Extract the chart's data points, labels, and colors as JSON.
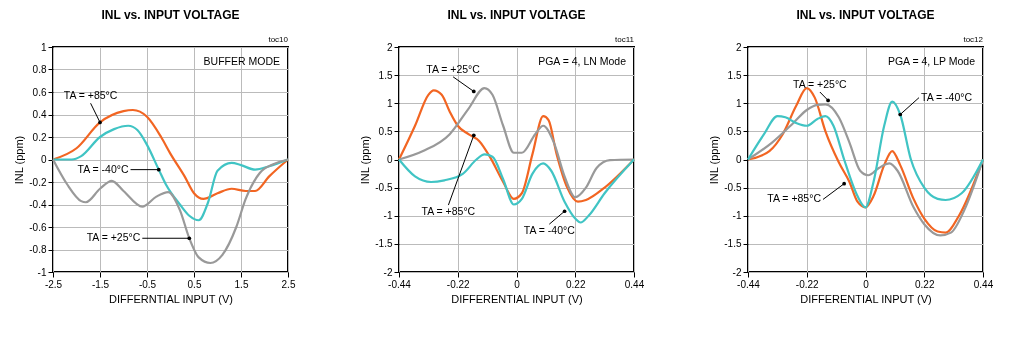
{
  "chart_data": [
    {
      "type": "line",
      "title": "INL vs. INPUT VOLTAGE",
      "xlabel": "DIFFERNTIAL INPUT (V)",
      "ylabel": "INL (ppm)",
      "xlim": [
        -2.5,
        2.5
      ],
      "xticks": [
        -2.5,
        -1.5,
        -0.5,
        0.5,
        1.5,
        2.5
      ],
      "ylim": [
        -1,
        1
      ],
      "yticks": [
        -1,
        -0.8,
        -0.6,
        -0.4,
        -0.2,
        0,
        0.2,
        0.4,
        0.6,
        0.8,
        1
      ],
      "grid": true,
      "line_style": "solid",
      "marker": "none",
      "series": [
        {
          "color": "#f26522",
          "x": [
            -2.5,
            -2.0,
            -1.5,
            -1.0,
            -0.8,
            -0.5,
            -0.2,
            0.0,
            0.3,
            0.5,
            0.7,
            1.0,
            1.3,
            1.6,
            1.8,
            2.1,
            2.5
          ],
          "values": [
            0,
            0.1,
            0.33,
            0.43,
            0.44,
            0.38,
            0.2,
            0.05,
            -0.15,
            -0.3,
            -0.35,
            -0.3,
            -0.26,
            -0.28,
            -0.28,
            -0.15,
            0
          ]
        },
        {
          "color": "#40c4c4",
          "x": [
            -2.5,
            -2.1,
            -1.9,
            -1.5,
            -1.2,
            -0.9,
            -0.7,
            -0.5,
            -0.25,
            -0.1,
            0.2,
            0.4,
            0.6,
            0.8,
            1.0,
            1.3,
            1.5,
            1.8,
            2.1,
            2.5
          ],
          "values": [
            0,
            0,
            0.03,
            0.2,
            0.27,
            0.3,
            0.26,
            0.13,
            -0.09,
            -0.22,
            -0.4,
            -0.5,
            -0.54,
            -0.38,
            -0.1,
            -0.03,
            -0.05,
            -0.09,
            -0.06,
            0
          ]
        },
        {
          "color": "#999999",
          "x": [
            -2.5,
            -2.2,
            -1.9,
            -1.8,
            -1.5,
            -1.25,
            -1.0,
            -0.6,
            -0.3,
            -0.05,
            0.2,
            0.4,
            0.6,
            0.85,
            1.1,
            1.4,
            1.6,
            1.9,
            2.2,
            2.5
          ],
          "values": [
            0,
            -0.22,
            -0.37,
            -0.38,
            -0.26,
            -0.19,
            -0.28,
            -0.42,
            -0.33,
            -0.29,
            -0.45,
            -0.7,
            -0.87,
            -0.92,
            -0.85,
            -0.6,
            -0.35,
            -0.12,
            -0.04,
            0
          ]
        }
      ],
      "annotations": [
        "toc10",
        "BUFFER MODE",
        {
          "text": "TA = +85°C",
          "x": -1.5,
          "y": 0.33
        },
        {
          "text": "TA = -40°C",
          "x": -0.25,
          "y": -0.09
        },
        {
          "text": "TA = +25°C",
          "x": 0.4,
          "y": -0.7
        }
      ]
    },
    {
      "type": "line",
      "title": "INL vs. INPUT VOLTAGE",
      "xlabel": "DIFFERENTIAL INPUT (V)",
      "ylabel": "INL (ppm)",
      "xlim": [
        -0.44,
        0.44
      ],
      "xticks": [
        -0.44,
        -0.22,
        0,
        0.22,
        0.44
      ],
      "ylim": [
        -2,
        2
      ],
      "yticks": [
        -2,
        -1.5,
        -1,
        -0.5,
        0,
        0.5,
        1,
        1.5,
        2
      ],
      "grid": true,
      "line_style": "solid",
      "marker": "none",
      "series": [
        {
          "color": "#f26522",
          "x": [
            -0.44,
            -0.38,
            -0.33,
            -0.31,
            -0.28,
            -0.25,
            -0.22,
            -0.18,
            -0.14,
            -0.1,
            -0.05,
            -0.01,
            0.02,
            0.06,
            0.1,
            0.12,
            0.15,
            0.19,
            0.23,
            0.26,
            0.33,
            0.44
          ],
          "values": [
            0,
            0.6,
            1.15,
            1.23,
            1.15,
            0.85,
            0.6,
            0.45,
            0.33,
            0.05,
            -0.4,
            -0.7,
            -0.6,
            0.1,
            0.77,
            0.7,
            0.1,
            -0.5,
            -0.75,
            -0.72,
            -0.5,
            0
          ]
        },
        {
          "color": "#999999",
          "x": [
            -0.44,
            -0.35,
            -0.25,
            -0.18,
            -0.12,
            -0.09,
            -0.05,
            -0.01,
            0.02,
            0.07,
            0.1,
            0.14,
            0.18,
            0.22,
            0.26,
            0.3,
            0.35,
            0.44
          ],
          "values": [
            0,
            0.15,
            0.45,
            0.9,
            1.27,
            1.15,
            0.6,
            0.12,
            0.12,
            0.45,
            0.6,
            0.3,
            -0.3,
            -0.67,
            -0.5,
            -0.15,
            -0.01,
            0
          ]
        },
        {
          "color": "#40c4c4",
          "x": [
            -0.44,
            -0.38,
            -0.32,
            -0.27,
            -0.2,
            -0.15,
            -0.12,
            -0.09,
            -0.05,
            -0.01,
            0.02,
            0.06,
            0.1,
            0.13,
            0.18,
            0.22,
            0.24,
            0.27,
            0.33,
            0.44
          ],
          "values": [
            0,
            -0.3,
            -0.4,
            -0.37,
            -0.25,
            0.0,
            0.09,
            0.05,
            -0.35,
            -0.8,
            -0.7,
            -0.25,
            -0.07,
            -0.2,
            -0.75,
            -1.05,
            -1.12,
            -1.0,
            -0.6,
            0
          ]
        }
      ],
      "annotations": [
        "toc11",
        "PGA = 4, LN Mode",
        {
          "text": "TA = +25°C",
          "x": -0.16,
          "y": 1.21
        },
        {
          "text": "TA = +85°C",
          "x": -0.16,
          "y": 0.43
        },
        {
          "text": "TA = -40°C",
          "x": 0.18,
          "y": -0.92
        }
      ]
    },
    {
      "type": "line",
      "title": "INL vs. INPUT VOLTAGE",
      "xlabel": "DIFFERENTIAL INPUT (V)",
      "ylabel": "INL (ppm)",
      "xlim": [
        -0.44,
        0.44
      ],
      "xticks": [
        -0.44,
        -0.22,
        0,
        0.22,
        0.44
      ],
      "ylim": [
        -2,
        2
      ],
      "yticks": [
        -2,
        -1.5,
        -1,
        -0.5,
        0,
        0.5,
        1,
        1.5,
        2
      ],
      "grid": true,
      "line_style": "solid",
      "marker": "none",
      "series": [
        {
          "color": "#f26522",
          "x": [
            -0.44,
            -0.36,
            -0.31,
            -0.26,
            -0.22,
            -0.19,
            -0.15,
            -0.1,
            -0.06,
            -0.03,
            0.0,
            0.03,
            0.07,
            0.1,
            0.13,
            0.18,
            0.22,
            0.27,
            0.3,
            0.35,
            0.44
          ],
          "values": [
            0,
            0.15,
            0.45,
            0.95,
            1.27,
            1.1,
            0.5,
            -0.05,
            -0.4,
            -0.75,
            -0.85,
            -0.65,
            -0.1,
            0.15,
            -0.1,
            -0.7,
            -1.05,
            -1.28,
            -1.3,
            -1.0,
            0
          ]
        },
        {
          "color": "#999999",
          "x": [
            -0.44,
            -0.35,
            -0.27,
            -0.22,
            -0.18,
            -0.15,
            -0.1,
            -0.06,
            -0.02,
            0.01,
            0.05,
            0.09,
            0.12,
            0.18,
            0.22,
            0.28,
            0.32,
            0.37,
            0.44
          ],
          "values": [
            0,
            0.3,
            0.65,
            0.88,
            0.97,
            0.98,
            0.75,
            0.3,
            -0.2,
            -0.28,
            -0.15,
            -0.07,
            -0.2,
            -0.85,
            -1.15,
            -1.35,
            -1.3,
            -0.9,
            0
          ]
        },
        {
          "color": "#40c4c4",
          "x": [
            -0.44,
            -0.38,
            -0.33,
            -0.3,
            -0.26,
            -0.22,
            -0.18,
            -0.15,
            -0.12,
            -0.08,
            -0.03,
            0.0,
            0.03,
            0.07,
            0.1,
            0.13,
            0.17,
            0.22,
            0.27,
            0.3,
            0.36,
            0.44
          ],
          "values": [
            0,
            0.45,
            0.77,
            0.75,
            0.65,
            0.6,
            0.72,
            0.77,
            0.6,
            0.0,
            -0.65,
            -0.85,
            -0.4,
            0.6,
            1.03,
            0.8,
            0.0,
            -0.5,
            -0.7,
            -0.72,
            -0.6,
            0
          ]
        }
      ],
      "annotations": [
        "toc12",
        "PGA = 4, LP Mode",
        {
          "text": "TA = +25°C",
          "x": -0.14,
          "y": 1.05
        },
        {
          "text": "TA = -40°C",
          "x": 0.13,
          "y": 0.8
        },
        {
          "text": "TA = +85°C",
          "x": -0.08,
          "y": -0.43
        }
      ]
    }
  ]
}
